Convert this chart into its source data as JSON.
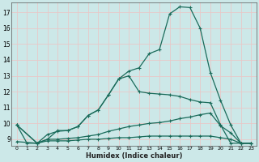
{
  "xlabel": "Humidex (Indice chaleur)",
  "bg_color": "#cce8e8",
  "grid_color": "#e8c8c8",
  "line_color": "#1a6b5a",
  "xlim": [
    -0.5,
    23.5
  ],
  "ylim": [
    8.6,
    17.6
  ],
  "xticks": [
    0,
    1,
    2,
    3,
    4,
    5,
    6,
    7,
    8,
    9,
    10,
    11,
    12,
    13,
    14,
    15,
    16,
    17,
    18,
    19,
    20,
    21,
    22,
    23
  ],
  "yticks": [
    9,
    10,
    11,
    12,
    13,
    14,
    15,
    16,
    17
  ],
  "series": [
    {
      "x": [
        0,
        1,
        2,
        3,
        4,
        5,
        6,
        7,
        8,
        9,
        10,
        11,
        12,
        13,
        14,
        15,
        16,
        17,
        18,
        19,
        20,
        21,
        22,
        23
      ],
      "y": [
        9.9,
        8.75,
        8.75,
        9.3,
        9.5,
        9.55,
        9.8,
        10.5,
        10.85,
        11.8,
        12.8,
        13.3,
        13.5,
        14.4,
        14.65,
        16.9,
        17.35,
        17.3,
        16.0,
        13.2,
        11.45,
        9.9,
        8.75,
        8.75
      ]
    },
    {
      "x": [
        0,
        2,
        3,
        4,
        5,
        6,
        7,
        8,
        9,
        10,
        11,
        12,
        13,
        14,
        15,
        16,
        17,
        18,
        19,
        20,
        21,
        22,
        23
      ],
      "y": [
        9.9,
        8.75,
        9.0,
        9.55,
        9.55,
        9.8,
        10.5,
        10.85,
        11.8,
        12.8,
        13.0,
        12.0,
        11.9,
        11.85,
        11.8,
        11.7,
        11.5,
        11.35,
        11.3,
        9.9,
        8.75,
        8.75,
        8.75
      ]
    },
    {
      "x": [
        0,
        2,
        3,
        4,
        5,
        6,
        7,
        8,
        9,
        10,
        11,
        12,
        13,
        14,
        15,
        16,
        17,
        18,
        19,
        20,
        21,
        22,
        23
      ],
      "y": [
        9.9,
        8.75,
        9.0,
        9.0,
        9.05,
        9.1,
        9.2,
        9.3,
        9.5,
        9.65,
        9.8,
        9.9,
        10.0,
        10.05,
        10.15,
        10.3,
        10.4,
        10.55,
        10.65,
        9.85,
        9.4,
        8.75,
        8.75
      ]
    },
    {
      "x": [
        0,
        2,
        3,
        4,
        5,
        6,
        7,
        8,
        9,
        10,
        11,
        12,
        13,
        14,
        15,
        16,
        17,
        18,
        19,
        20,
        21,
        22,
        23
      ],
      "y": [
        8.85,
        8.75,
        8.9,
        8.9,
        8.9,
        8.95,
        9.0,
        9.0,
        9.05,
        9.1,
        9.1,
        9.15,
        9.2,
        9.2,
        9.2,
        9.2,
        9.2,
        9.2,
        9.2,
        9.1,
        9.0,
        8.75,
        8.75
      ]
    }
  ]
}
